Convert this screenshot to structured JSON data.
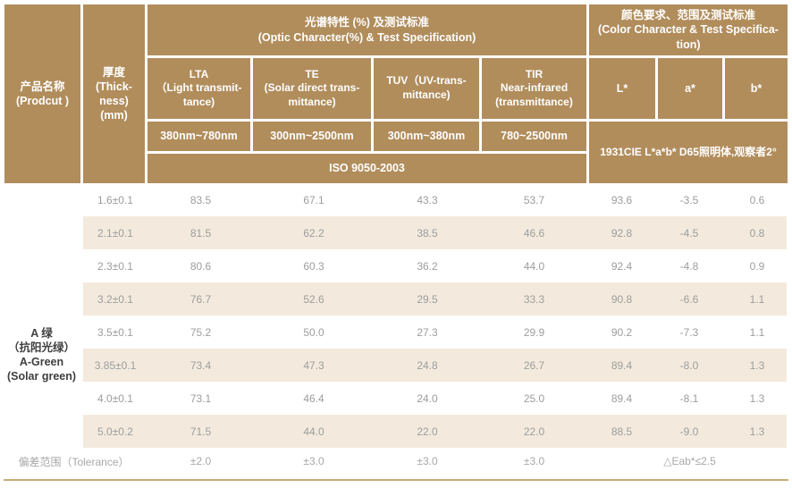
{
  "colors": {
    "header-bg": "#b18d5c",
    "header-text": "#ffffff",
    "stripe": "#f3eadd",
    "body-text": "#9d9d9d",
    "product-text": "#3f3f3f",
    "tolerance-text": "#a8a8a8",
    "bottom-line": "#c9ab79"
  },
  "header": {
    "product_title": "产品名称\n(Prodcut )",
    "thickness_title": "厚度\n(Thick-\nness)\n(mm)",
    "optic_group": "光谱特性 (%) 及测试标准\n(Optic Character(%) & Test Specification)",
    "color_group": "颜色要求、范围及测试标准\n(Color Character & Test Specifica-\ntion)",
    "lta": "LTA\n（Light transmit-\ntance)",
    "te": "TE\n(Solar direct trans-\nmittance)",
    "tuv": "TUV（UV-trans-\nmittance)",
    "tir": "TIR\nNear-infrared\n(transmittance)",
    "l_star": "L*",
    "a_star": "a*",
    "b_star": "b*",
    "range_lta": "380nm~780nm",
    "range_te": "300nm~2500nm",
    "range_tuv": "300nm~380nm",
    "range_tir": "780~2500nm",
    "iso": "ISO 9050-2003",
    "cie": "1931CIE L*a*b* D65照明体,观察者2°"
  },
  "product": {
    "name": "A 绿\n（抗阳光绿）\nA-Green\n(Solar green)"
  },
  "rows": [
    {
      "thickness": "1.6±0.1",
      "lta": "83.5",
      "te": "67.1",
      "tuv": "43.3",
      "tir": "53.7",
      "l": "93.6",
      "a": "-3.5",
      "b": "0.6"
    },
    {
      "thickness": "2.1±0.1",
      "lta": "81.5",
      "te": "62.2",
      "tuv": "38.5",
      "tir": "46.6",
      "l": "92.8",
      "a": "-4.5",
      "b": "0.8"
    },
    {
      "thickness": "2.3±0.1",
      "lta": "80.6",
      "te": "60.3",
      "tuv": "36.2",
      "tir": "44.0",
      "l": "92.4",
      "a": "-4.8",
      "b": "0.9"
    },
    {
      "thickness": "3.2±0.1",
      "lta": "76.7",
      "te": "52.6",
      "tuv": "29.5",
      "tir": "33.3",
      "l": "90.8",
      "a": "-6.6",
      "b": "1.1"
    },
    {
      "thickness": "3.5±0.1",
      "lta": "75.2",
      "te": "50.0",
      "tuv": "27.3",
      "tir": "29.9",
      "l": "90.2",
      "a": "-7.3",
      "b": "1.1"
    },
    {
      "thickness": "3.85±0.1",
      "lta": "73.4",
      "te": "47.3",
      "tuv": "24.8",
      "tir": "26.7",
      "l": "89.4",
      "a": "-8.0",
      "b": "1.3"
    },
    {
      "thickness": "4.0±0.1",
      "lta": "73.1",
      "te": "46.4",
      "tuv": "24.0",
      "tir": "25.0",
      "l": "89.4",
      "a": "-8.1",
      "b": "1.3"
    },
    {
      "thickness": "5.0±0.2",
      "lta": "71.5",
      "te": "44.0",
      "tuv": "22.0",
      "tir": "22.0",
      "l": "88.5",
      "a": "-9.0",
      "b": "1.3"
    }
  ],
  "tolerance": {
    "label": "偏差范围（Tolerance）",
    "lta": "±2.0",
    "te": "±3.0",
    "tuv": "±3.0",
    "tir": "±3.0",
    "eab": "△Eab*≤2.5"
  }
}
